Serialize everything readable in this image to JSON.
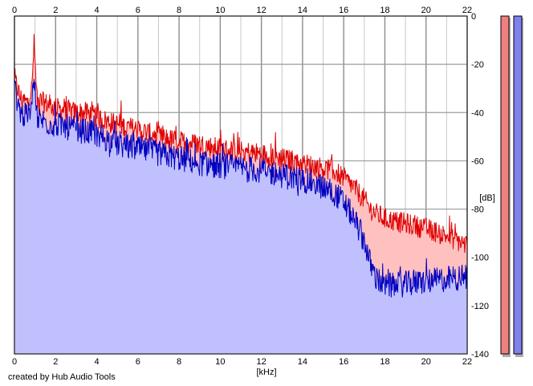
{
  "chart_data": {
    "type": "area",
    "xlabel": "[kHz]",
    "ylabel": "[dB]",
    "xlim": [
      0,
      22
    ],
    "ylim": [
      -140,
      0
    ],
    "x_ticks": [
      "0",
      "2",
      "4",
      "6",
      "8",
      "10",
      "12",
      "14",
      "16",
      "18",
      "20",
      "22"
    ],
    "y_ticks": [
      "0",
      "-20",
      "-40",
      "-60",
      "-80",
      "-100",
      "-120",
      "-140"
    ],
    "grid": true,
    "series": [
      {
        "color": "#e00000",
        "fill": "#ffc0c0",
        "x": [
          0,
          0.3,
          0.6,
          0.85,
          0.95,
          1.1,
          1.5,
          2,
          2.5,
          3,
          3.5,
          4,
          5,
          6,
          7,
          8,
          9,
          10,
          11,
          12,
          13,
          13.5,
          14,
          14.5,
          15,
          15.5,
          16,
          16.5,
          17,
          17.3,
          17.6,
          18,
          19,
          20,
          21,
          22
        ],
        "y": [
          -26,
          -34,
          -36,
          -30,
          -11,
          -35,
          -36,
          -38,
          -39,
          -40,
          -40,
          -42,
          -45,
          -47,
          -50,
          -52,
          -53,
          -55,
          -56,
          -57,
          -59,
          -60,
          -61,
          -62,
          -63,
          -64,
          -67,
          -71,
          -76,
          -80,
          -82,
          -84,
          -86,
          -88,
          -91,
          -95
        ]
      },
      {
        "color": "#0000c0",
        "fill": "#c0c0ff",
        "x": [
          0,
          0.3,
          0.6,
          0.85,
          0.95,
          1.1,
          1.5,
          2,
          2.5,
          3,
          3.5,
          4,
          5,
          6,
          7,
          8,
          9,
          10,
          11,
          12,
          13,
          13.5,
          14,
          14.5,
          15,
          15.5,
          16,
          16.5,
          17,
          17.3,
          17.6,
          18,
          19,
          20,
          21,
          22
        ],
        "y": [
          -30,
          -40,
          -42,
          -38,
          -22,
          -42,
          -44,
          -45,
          -46,
          -47,
          -48,
          -49,
          -53,
          -55,
          -57,
          -59,
          -61,
          -62,
          -63,
          -64,
          -66,
          -67,
          -68,
          -69,
          -71,
          -73,
          -77,
          -84,
          -93,
          -103,
          -109,
          -112,
          -111,
          -110,
          -109,
          -108
        ]
      }
    ],
    "level_bars": [
      {
        "color": "#f08080",
        "level_db": 0
      },
      {
        "color": "#8080f0",
        "level_db": 0
      }
    ],
    "credit": "created by Hub Audio Tools"
  }
}
